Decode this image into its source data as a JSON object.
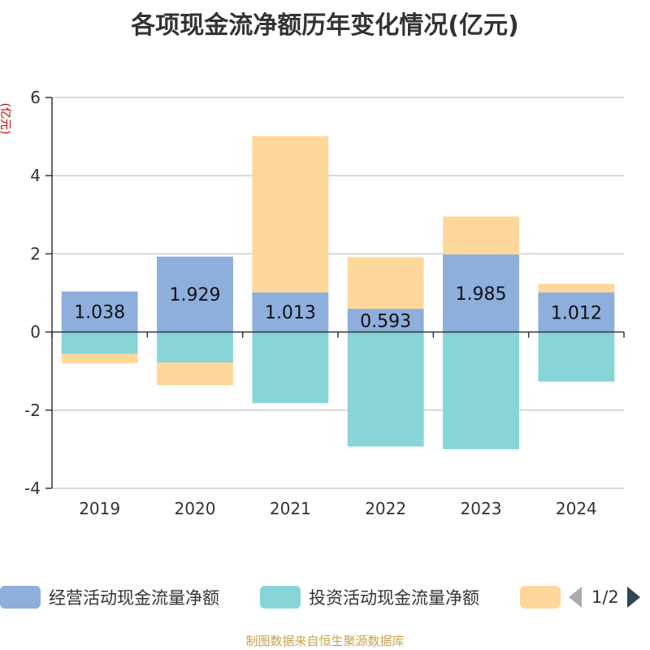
{
  "chart_data": {
    "type": "bar",
    "stacked": true,
    "title": "各项现金流净额历年变化情况(亿元)",
    "ylabel": "(亿元)",
    "categories": [
      "2019",
      "2020",
      "2021",
      "2022",
      "2023",
      "2024"
    ],
    "ylim": [
      -4,
      6
    ],
    "yticks": [
      -4,
      -2,
      0,
      2,
      4,
      6
    ],
    "grid": true,
    "series": [
      {
        "name": "经营活动现金流量净额",
        "color": "#8eaedc",
        "values": [
          1.038,
          1.929,
          1.013,
          0.593,
          1.985,
          1.012
        ],
        "show_labels": true
      },
      {
        "name": "投资活动现金流量净额",
        "color": "#88d5d8",
        "values": [
          -0.56,
          -0.78,
          -1.82,
          -2.93,
          -3.0,
          -1.27
        ],
        "show_labels": false
      },
      {
        "name": "",
        "color": "#fdd89a",
        "values": [
          -0.24,
          -0.58,
          4.0,
          1.32,
          0.97,
          0.22
        ],
        "show_labels": false
      }
    ]
  },
  "legend": {
    "items": [
      {
        "label": "经营活动现金流量净额",
        "color": "#8eaedc"
      },
      {
        "label": "投资活动现金流量净额",
        "color": "#88d5d8"
      },
      {
        "label": "",
        "color": "#fdd89a"
      }
    ],
    "pager_text": "1/2"
  },
  "source_note": "制图数据来自恒生聚源数据库"
}
